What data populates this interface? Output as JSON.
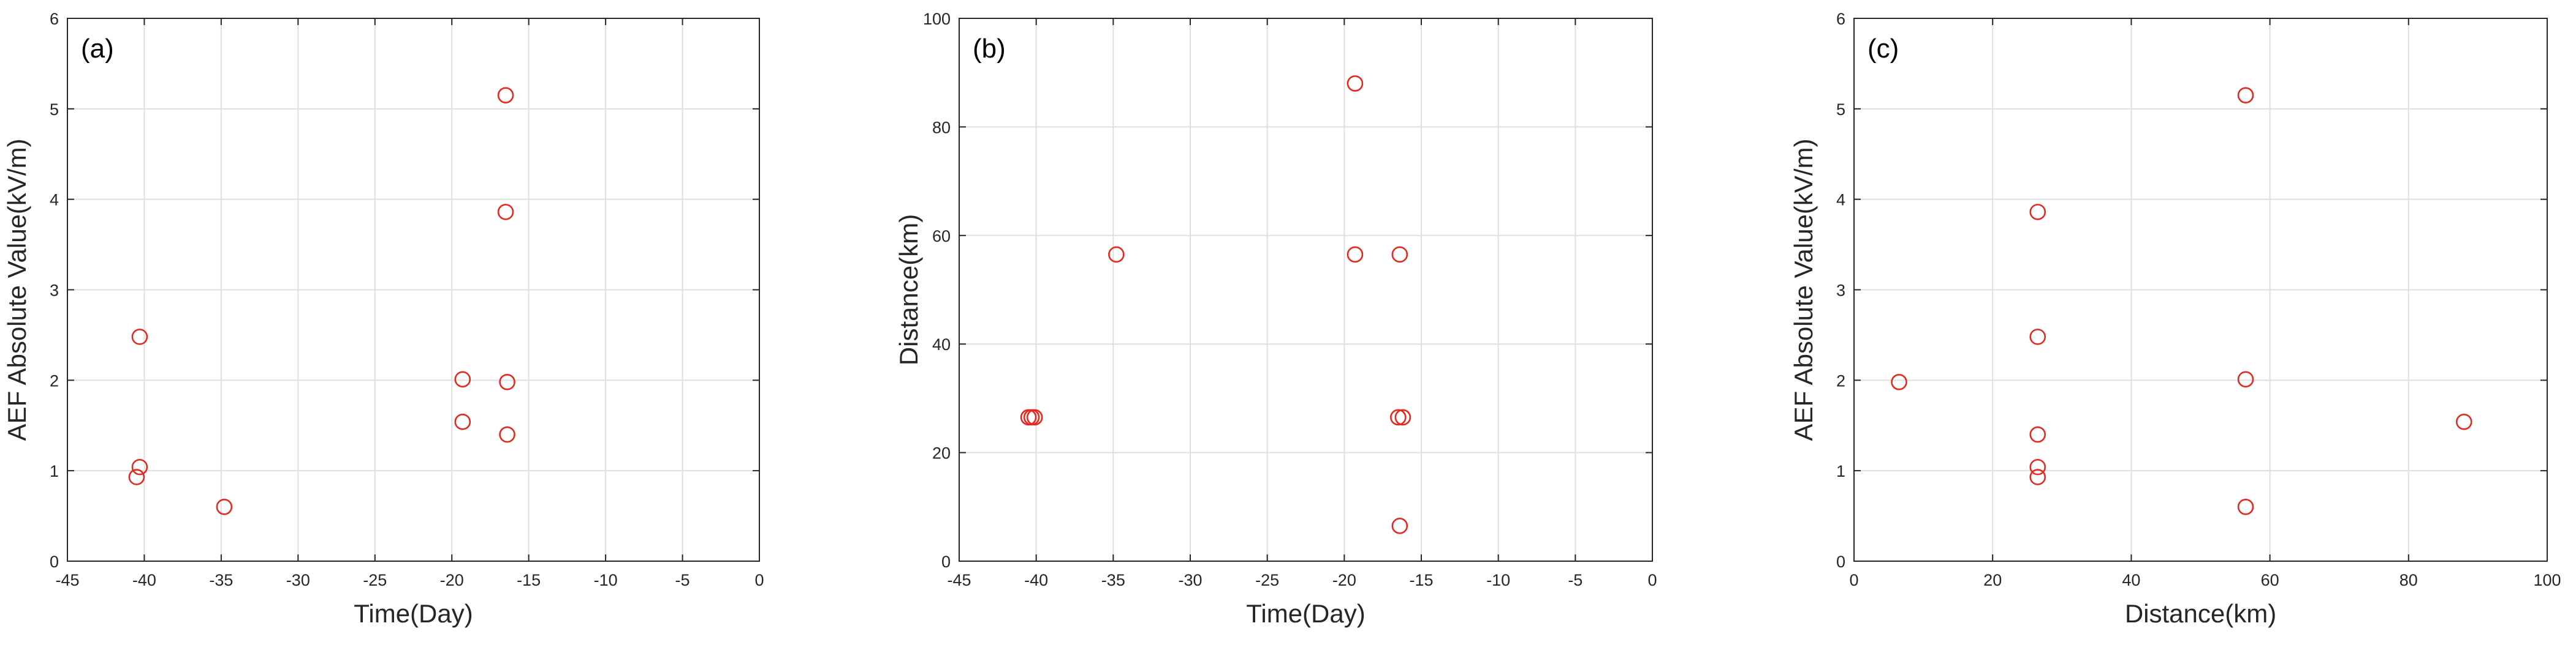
{
  "chart_data": [
    {
      "type": "scatter",
      "panel_label": "(a)",
      "xlabel": "Time(Day)",
      "ylabel": "AEF Absolute Value(kV/m)",
      "xlim": [
        -45,
        0
      ],
      "ylim": [
        0,
        6
      ],
      "xticks": [
        -45,
        -40,
        -35,
        -30,
        -25,
        -20,
        -15,
        -10,
        -5,
        0
      ],
      "yticks": [
        0,
        1,
        2,
        3,
        4,
        5,
        6
      ],
      "grid": true,
      "marker_color": "#e8261c",
      "points": [
        {
          "x": -40.5,
          "y": 0.93
        },
        {
          "x": -40.3,
          "y": 1.04
        },
        {
          "x": -40.3,
          "y": 2.48
        },
        {
          "x": -34.8,
          "y": 0.6
        },
        {
          "x": -19.3,
          "y": 1.54
        },
        {
          "x": -19.3,
          "y": 2.01
        },
        {
          "x": -16.4,
          "y": 1.4
        },
        {
          "x": -16.4,
          "y": 1.98
        },
        {
          "x": -16.5,
          "y": 3.86
        },
        {
          "x": -16.5,
          "y": 5.15
        }
      ]
    },
    {
      "type": "scatter",
      "panel_label": "(b)",
      "xlabel": "Time(Day)",
      "ylabel": "Distance(km)",
      "xlim": [
        -45,
        0
      ],
      "ylim": [
        0,
        100
      ],
      "xticks": [
        -45,
        -40,
        -35,
        -30,
        -25,
        -20,
        -15,
        -10,
        -5,
        0
      ],
      "yticks": [
        0,
        20,
        40,
        60,
        80,
        100
      ],
      "grid": true,
      "marker_color": "#e8261c",
      "points": [
        {
          "x": -40.5,
          "y": 26.5
        },
        {
          "x": -40.3,
          "y": 26.5
        },
        {
          "x": -40.1,
          "y": 26.5
        },
        {
          "x": -34.8,
          "y": 56.5
        },
        {
          "x": -19.3,
          "y": 88.0
        },
        {
          "x": -19.3,
          "y": 56.5
        },
        {
          "x": -16.4,
          "y": 56.5
        },
        {
          "x": -16.5,
          "y": 26.5
        },
        {
          "x": -16.2,
          "y": 26.5
        },
        {
          "x": -16.4,
          "y": 6.5
        }
      ]
    },
    {
      "type": "scatter",
      "panel_label": "(c)",
      "xlabel": "Distance(km)",
      "ylabel": "AEF Absolute Value(kV/m)",
      "xlim": [
        0,
        100
      ],
      "ylim": [
        0,
        6
      ],
      "xticks": [
        0,
        20,
        40,
        60,
        80,
        100
      ],
      "yticks": [
        0,
        1,
        2,
        3,
        4,
        5,
        6
      ],
      "grid": true,
      "marker_color": "#e8261c",
      "points": [
        {
          "x": 6.5,
          "y": 1.98
        },
        {
          "x": 26.5,
          "y": 3.86
        },
        {
          "x": 26.5,
          "y": 2.48
        },
        {
          "x": 26.5,
          "y": 1.4
        },
        {
          "x": 26.5,
          "y": 1.04
        },
        {
          "x": 26.5,
          "y": 0.93
        },
        {
          "x": 56.5,
          "y": 5.15
        },
        {
          "x": 56.5,
          "y": 2.01
        },
        {
          "x": 56.5,
          "y": 0.6
        },
        {
          "x": 88.0,
          "y": 1.54
        }
      ]
    }
  ]
}
